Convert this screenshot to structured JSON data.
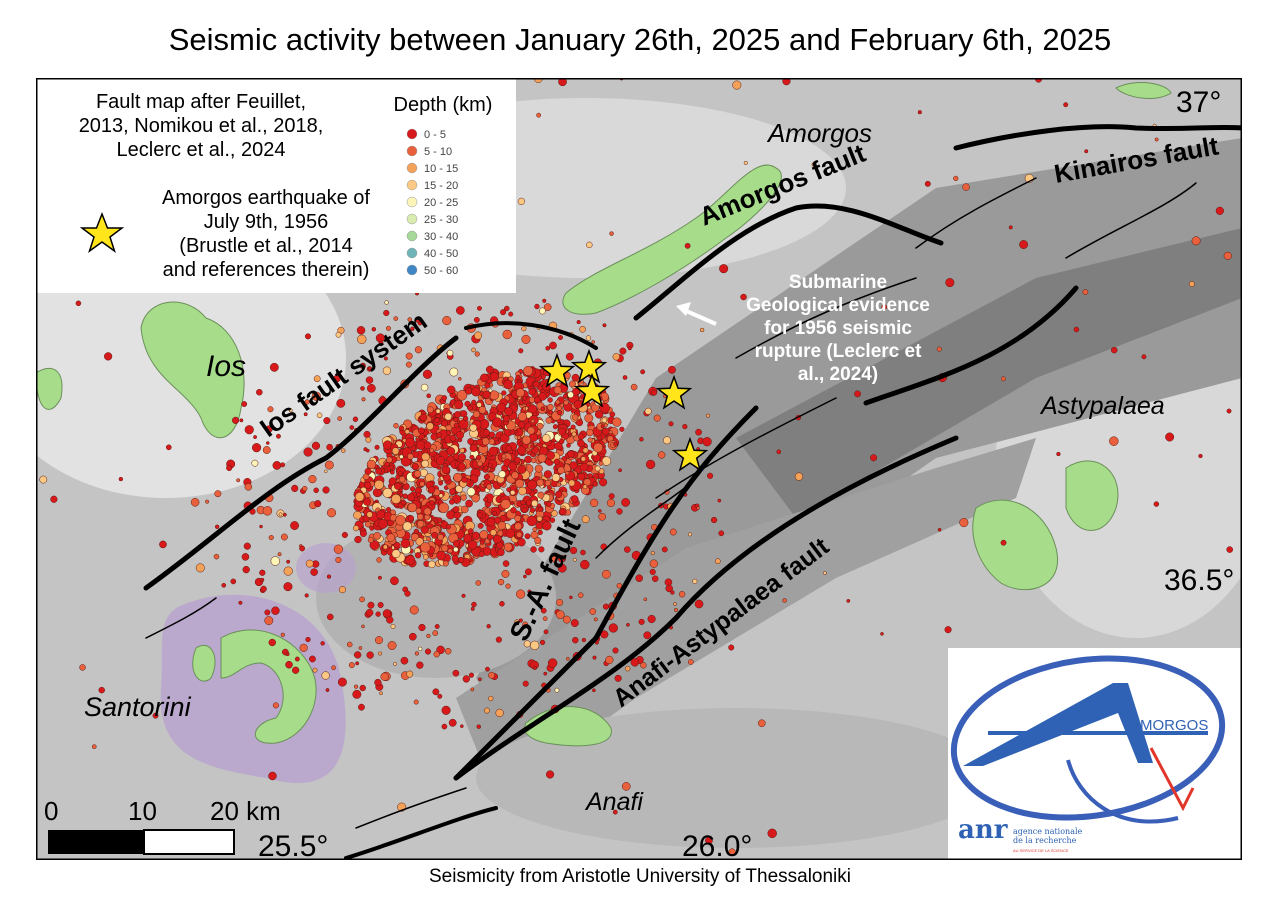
{
  "title": "Seismic activity between January 26th, 2025 and February 6th, 2025",
  "caption": "Seismicity from Aristotle University of Thessaloniki",
  "legend": {
    "fault_source": [
      "Fault map after Feuillet,",
      "2013, Nomikou et al., 2018,",
      "Leclerc et al., 2024"
    ],
    "star_text": [
      "Amorgos earthquake of",
      "July 9th, 1956",
      "(Brustle et al., 2014",
      "and references therein)"
    ],
    "depth_title": "Depth (km)",
    "depth_classes": [
      {
        "label": "0 - 5",
        "color": "#d7191c"
      },
      {
        "label": "5 - 10",
        "color": "#e8603c"
      },
      {
        "label": "10 - 15",
        "color": "#f4a259"
      },
      {
        "label": "15 - 20",
        "color": "#fbc983"
      },
      {
        "label": "20 - 25",
        "color": "#fdf5b8"
      },
      {
        "label": "25 - 30",
        "color": "#d8ecb0"
      },
      {
        "label": "30 - 40",
        "color": "#a6d99a"
      },
      {
        "label": "40 - 50",
        "color": "#6fb4b8"
      },
      {
        "label": "50 - 60",
        "color": "#3f86c6"
      }
    ]
  },
  "places": {
    "amorgos": "Amorgos",
    "ios": "Ios",
    "astypalaea": "Astypalaea",
    "santorini": "Santorini",
    "anafi": "Anafi"
  },
  "faults": {
    "kinairos": "Kinairos fault",
    "amorgos": "Amorgos fault",
    "ios": "Ios fault system",
    "sa": "S.-A. fault",
    "anafi_astypalaea": "Anafi-Astypalaea fault"
  },
  "annotation": [
    "Submarine",
    "Geological evidence",
    "for 1956 seismic",
    "rupture (Leclerc et",
    "al., 2024)"
  ],
  "coordinates": {
    "lat_37": "37°",
    "lat_36_5": "36.5°",
    "lon_25_5": "25.5°",
    "lon_26_0": "26.0°"
  },
  "scale_bar": {
    "labels": [
      "0",
      "10",
      "20 km"
    ]
  },
  "logo": {
    "text": "MORGOS",
    "anr": "anr",
    "anr_sub1": "agence nationale",
    "anr_sub2": "de la recherche",
    "anr_tag": "AU SERVICE DE LA SCIENCE"
  },
  "colors": {
    "land": "#a6dc8a",
    "sea_light": "#d4d4d4",
    "sea_dark": "#8f8f8f",
    "star": "#ffe51a",
    "volcano_halo": "#b7a0cf"
  }
}
